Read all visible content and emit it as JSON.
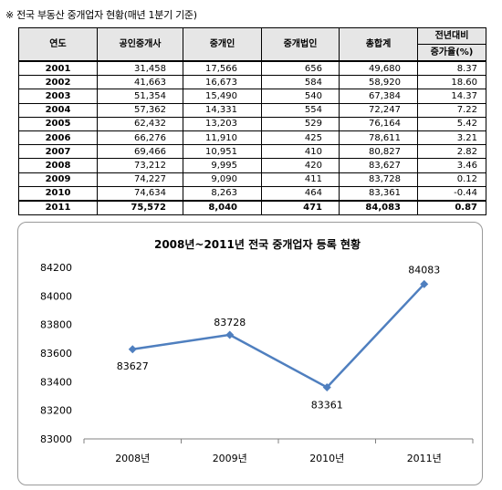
{
  "caption": "※ 전국 부동산 중개업자 현황(매년 1분기 기준)",
  "table": {
    "headers": [
      "연도",
      "공인중개사",
      "중개인",
      "중개법인",
      "총합계"
    ],
    "rate_header_line1": "전년대비",
    "rate_header_line2": "증가율(%)",
    "rows": [
      [
        "2001",
        "31,458",
        "17,566",
        "656",
        "49,680",
        "8.37"
      ],
      [
        "2002",
        "41,663",
        "16,673",
        "584",
        "58,920",
        "18.60"
      ],
      [
        "2003",
        "51,354",
        "15,490",
        "540",
        "67,384",
        "14.37"
      ],
      [
        "2004",
        "57,362",
        "14,331",
        "554",
        "72,247",
        "7.22"
      ],
      [
        "2005",
        "62,432",
        "13,203",
        "529",
        "76,164",
        "5.42"
      ],
      [
        "2006",
        "66,276",
        "11,910",
        "425",
        "78,611",
        "3.21"
      ],
      [
        "2007",
        "69,466",
        "10,951",
        "410",
        "80,827",
        "2.82"
      ],
      [
        "2008",
        "73,212",
        "9,995",
        "420",
        "83,627",
        "3.46"
      ],
      [
        "2009",
        "74,227",
        "9,090",
        "411",
        "83,728",
        "0.12"
      ],
      [
        "2010",
        "74,634",
        "8,263",
        "464",
        "83,361",
        "-0.44"
      ],
      [
        "2011",
        "75,572",
        "8,040",
        "471",
        "84,083",
        "0.87"
      ]
    ]
  },
  "chart_data": {
    "type": "line",
    "title": "2008년~2011년 전국 중개업자 등록 현황",
    "categories": [
      "2008년",
      "2009년",
      "2010년",
      "2011년"
    ],
    "series": [
      {
        "values": [
          83627,
          83728,
          83361,
          84083
        ]
      }
    ],
    "data_labels": [
      "83627",
      "83728",
      "83361",
      "84083"
    ],
    "yticks": [
      83000,
      83200,
      83400,
      83600,
      83800,
      84000,
      84200
    ],
    "ylim": [
      83000,
      84200
    ],
    "xlabel": "",
    "ylabel": "",
    "grid": false,
    "legend": "none",
    "line_color": "#4f7fbf"
  }
}
